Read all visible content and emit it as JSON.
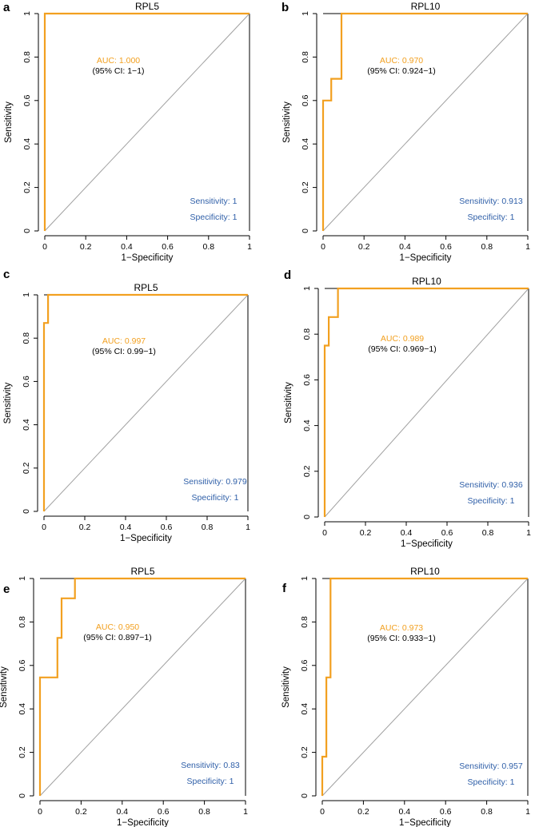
{
  "colors": {
    "roc": "#f2a020",
    "auc": "#f2a020",
    "stats": "#2f5fa8",
    "axis": "#000000",
    "diagonal": "#a0a0a0"
  },
  "chart_data": [
    {
      "type": "line",
      "panel": "a",
      "title": "RPL5",
      "xlabel": "1−Specificity",
      "ylabel": "Sensitivity",
      "xlim": [
        0,
        1
      ],
      "ylim": [
        0,
        1
      ],
      "xticks": [
        "0",
        "0.2",
        "0.4",
        "0.6",
        "0.8",
        "1"
      ],
      "yticks": [
        "0",
        "0.2",
        "0.4",
        "0.6",
        "0.8",
        "1"
      ],
      "series": [
        {
          "name": "ROC",
          "x": [
            0,
            0,
            0,
            1
          ],
          "y": [
            0,
            0,
            1,
            1
          ]
        }
      ],
      "auc_text": "AUC: 1.000",
      "ci_text": "(95% CI: 1−1)",
      "sensitivity_text": "Sensitivity: 1",
      "specificity_text": "Specificity: 1"
    },
    {
      "type": "line",
      "panel": "b",
      "title": "RPL10",
      "xlabel": "1−Specificity",
      "ylabel": "Sensitivity",
      "xlim": [
        0,
        1
      ],
      "ylim": [
        0,
        1
      ],
      "xticks": [
        "0",
        "0.2",
        "0.4",
        "0.6",
        "0.8",
        "1"
      ],
      "yticks": [
        "0",
        "0.2",
        "0.4",
        "0.6",
        "0.8",
        "1"
      ],
      "series": [
        {
          "name": "ROC",
          "x": [
            0,
            0,
            0.04,
            0.04,
            0.09,
            0.09,
            1
          ],
          "y": [
            0,
            0.6,
            0.6,
            0.7,
            0.7,
            1,
            1
          ]
        }
      ],
      "auc_text": "AUC: 0.970",
      "ci_text": "(95% CI: 0.924−1)",
      "sensitivity_text": "Sensitivity: 0.913",
      "specificity_text": "Specificity: 1"
    },
    {
      "type": "line",
      "panel": "c",
      "title": "RPL5",
      "xlabel": "1−Specificity",
      "ylabel": "Sensitivity",
      "xlim": [
        0,
        1
      ],
      "ylim": [
        0,
        1
      ],
      "xticks": [
        "0",
        "0.2",
        "0.4",
        "0.6",
        "0.8",
        "1"
      ],
      "yticks": [
        "0",
        "0.2",
        "0.4",
        "0.6",
        "0.8",
        "1"
      ],
      "series": [
        {
          "name": "ROC",
          "x": [
            0,
            0,
            0.02,
            0.02,
            1
          ],
          "y": [
            0,
            0.87,
            0.87,
            1,
            1
          ]
        }
      ],
      "auc_text": "AUC: 0.997",
      "ci_text": "(95% CI: 0.99−1)",
      "sensitivity_text": "Sensitivity: 0.979",
      "specificity_text": "Specificity: 1"
    },
    {
      "type": "line",
      "panel": "d",
      "title": "RPL10",
      "xlabel": "1−Specificity",
      "ylabel": "Sensitivity",
      "xlim": [
        0,
        1
      ],
      "ylim": [
        0,
        1
      ],
      "xticks": [
        "0",
        "0.2",
        "0.4",
        "0.6",
        "0.8",
        "1"
      ],
      "yticks": [
        "0",
        "0.2",
        "0.4",
        "0.6",
        "0.8",
        "1"
      ],
      "series": [
        {
          "name": "ROC",
          "x": [
            0,
            0,
            0.02,
            0.02,
            0.065,
            0.065,
            1
          ],
          "y": [
            0,
            0.75,
            0.75,
            0.875,
            0.875,
            1,
            1
          ]
        }
      ],
      "auc_text": "AUC: 0.989",
      "ci_text": "(95% CI: 0.969−1)",
      "sensitivity_text": "Sensitivity: 0.936",
      "specificity_text": "Specificity: 1"
    },
    {
      "type": "line",
      "panel": "e",
      "title": "RPL5",
      "xlabel": "1−Specificity",
      "ylabel": "Sensitivity",
      "xlim": [
        0,
        1
      ],
      "ylim": [
        0,
        1
      ],
      "xticks": [
        "0",
        "0.2",
        "0.4",
        "0.6",
        "0.8",
        "1"
      ],
      "yticks": [
        "0",
        "0.2",
        "0.4",
        "0.6",
        "0.8",
        "1"
      ],
      "series": [
        {
          "name": "ROC",
          "x": [
            0,
            0,
            0.085,
            0.085,
            0.105,
            0.105,
            0.17,
            0.17,
            1
          ],
          "y": [
            0,
            0.545,
            0.545,
            0.727,
            0.727,
            0.909,
            0.909,
            1,
            1
          ]
        }
      ],
      "auc_text": "AUC: 0.950",
      "ci_text": "(95% CI: 0.897−1)",
      "sensitivity_text": "Sensitivity: 0.83",
      "specificity_text": "Specificity: 1"
    },
    {
      "type": "line",
      "panel": "f",
      "title": "RPL10",
      "xlabel": "1−Specificity",
      "ylabel": "Sensitivity",
      "xlim": [
        0,
        1
      ],
      "ylim": [
        0,
        1
      ],
      "xticks": [
        "0",
        "0.2",
        "0.4",
        "0.6",
        "0.8",
        "1"
      ],
      "yticks": [
        "0",
        "0.2",
        "0.4",
        "0.6",
        "0.8",
        "1"
      ],
      "series": [
        {
          "name": "ROC",
          "x": [
            0,
            0,
            0.02,
            0.02,
            0.04,
            0.04,
            1
          ],
          "y": [
            0,
            0.18,
            0.18,
            0.545,
            0.545,
            1,
            1
          ]
        }
      ],
      "auc_text": "AUC: 0.973",
      "ci_text": "(95% CI: 0.933−1)",
      "sensitivity_text": "Sensitivity: 0.957",
      "specificity_text": "Specificity: 1"
    }
  ]
}
